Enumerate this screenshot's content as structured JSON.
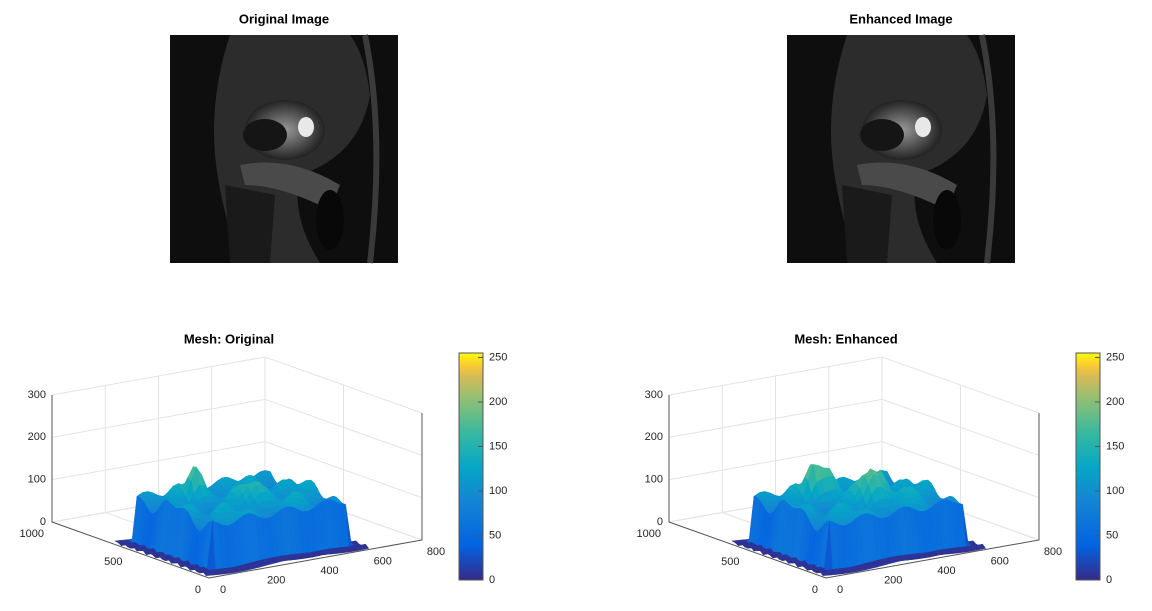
{
  "chart_data": [
    {
      "type": "image",
      "title": "Original Image"
    },
    {
      "type": "image",
      "title": "Enhanced Image"
    },
    {
      "type": "mesh",
      "title": "Mesh: Original",
      "xlim": [
        0,
        800
      ],
      "xticks": [
        0,
        200,
        400,
        600,
        800
      ],
      "ylim": [
        0,
        1000
      ],
      "yticks": [
        0,
        500,
        1000
      ],
      "zlim": [
        0,
        300
      ],
      "zticks": [
        0,
        100,
        200,
        300
      ],
      "colorbar": {
        "lim": [
          0,
          255
        ],
        "ticks": [
          0,
          50,
          100,
          150,
          200,
          250
        ]
      }
    },
    {
      "type": "mesh",
      "title": "Mesh: Enhanced",
      "xlim": [
        0,
        800
      ],
      "xticks": [
        0,
        200,
        400,
        600,
        800
      ],
      "ylim": [
        0,
        1000
      ],
      "yticks": [
        0,
        500,
        1000
      ],
      "zlim": [
        0,
        300
      ],
      "zticks": [
        0,
        100,
        200,
        300
      ],
      "colorbar": {
        "lim": [
          0,
          255
        ],
        "ticks": [
          0,
          50,
          100,
          150,
          200,
          250
        ]
      }
    }
  ]
}
